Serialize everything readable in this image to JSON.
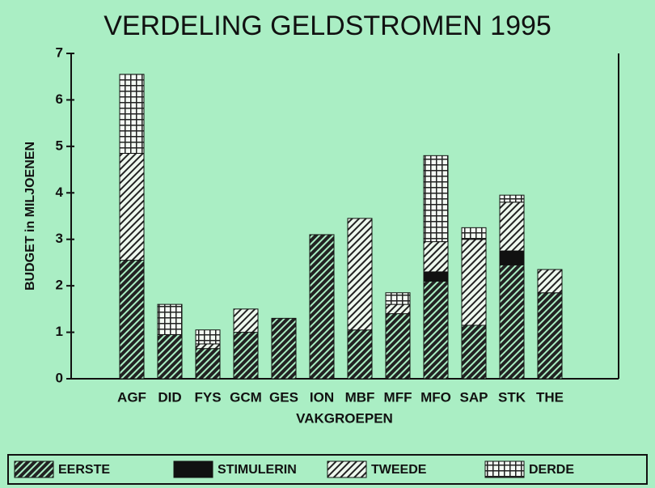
{
  "chart_data": {
    "type": "stacked_bar",
    "title": "VERDELING GELDSTROMEN 1995",
    "x_label": "VAKGROEPEN",
    "y_label": "BUDGET in MILJOENEN",
    "categories": [
      "AGF",
      "DID",
      "FYS",
      "GCM",
      "GES",
      "ION",
      "MBF",
      "MFF",
      "MFO",
      "SAP",
      "STK",
      "THE"
    ],
    "series": [
      {
        "name": "EERSTE",
        "color": "#222222",
        "pattern": "dense",
        "values": [
          2.55,
          0.95,
          0.65,
          1.0,
          1.3,
          3.1,
          1.05,
          1.4,
          2.1,
          1.15,
          2.45,
          1.85
        ]
      },
      {
        "name": "STIMULERIN",
        "color": "#111111",
        "pattern": "solid",
        "values": [
          0,
          0,
          0,
          0,
          0,
          0,
          0,
          0,
          0.2,
          0,
          0.3,
          0
        ]
      },
      {
        "name": "TWEEDE",
        "color": "#222222",
        "pattern": "light",
        "values": [
          2.3,
          0,
          0.1,
          0.5,
          0,
          0,
          2.4,
          0.2,
          0.65,
          1.85,
          1.05,
          0.5
        ]
      },
      {
        "name": "DERDE",
        "color": "#222222",
        "pattern": "grid",
        "values": [
          1.7,
          0.65,
          0.3,
          0,
          0,
          0,
          0,
          0.25,
          1.85,
          0.25,
          0.15,
          0
        ]
      }
    ],
    "ylim": [
      0,
      7
    ],
    "yticks": [
      0,
      1,
      2,
      3,
      4,
      5,
      6,
      7
    ],
    "legend": "bottom"
  }
}
